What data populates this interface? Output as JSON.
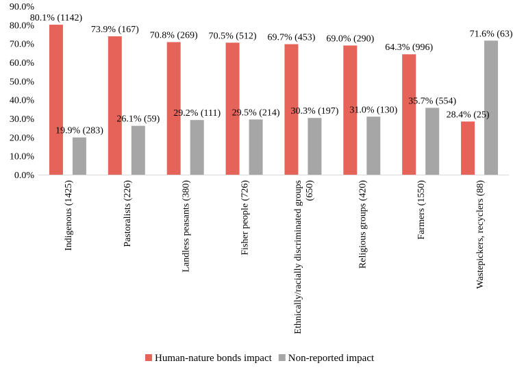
{
  "chart_data": {
    "type": "bar",
    "categories": [
      "Indigenous (1425)",
      "Pastoralists (226)",
      "Landless peasants (380)",
      "Fisher people (726)",
      [
        "Ethnically/racially discriminated groups",
        "(650)"
      ],
      "Religious groups (420)",
      "Farmers (1550)",
      "Wastepickers, recyclers (88)"
    ],
    "series": [
      {
        "name": "Human-nature bonds impact",
        "color": "#E6635A",
        "values": [
          80.1,
          73.9,
          70.8,
          70.5,
          69.7,
          69.0,
          64.3,
          28.4
        ],
        "labels": [
          "80.1% (1142)",
          "73.9% (167)",
          "70.8% (269)",
          "70.5% (512)",
          "69.7% (453)",
          "69.0% (290)",
          "64.3% (996)",
          "28.4% (25)"
        ]
      },
      {
        "name": "Non-reported impact",
        "color": "#A6A6A6",
        "values": [
          19.9,
          26.1,
          29.2,
          29.5,
          30.3,
          31.0,
          35.7,
          71.6
        ],
        "labels": [
          "19.9% (283)",
          "26.1% (59)",
          "29.2% (111)",
          "29.5% (214)",
          "30.3% (197)",
          "31.0% (130)",
          "35.7% (554)",
          "71.6% (63)"
        ]
      }
    ],
    "yticks": [
      "0.0%",
      "10.0%",
      "20.0%",
      "30.0%",
      "40.0%",
      "50.0%",
      "60.0%",
      "70.0%",
      "80.0%",
      "90.0%"
    ],
    "ylim": [
      0,
      90
    ],
    "grid": false,
    "legend_position": "bottom",
    "title": "",
    "xlabel": "",
    "ylabel": ""
  }
}
